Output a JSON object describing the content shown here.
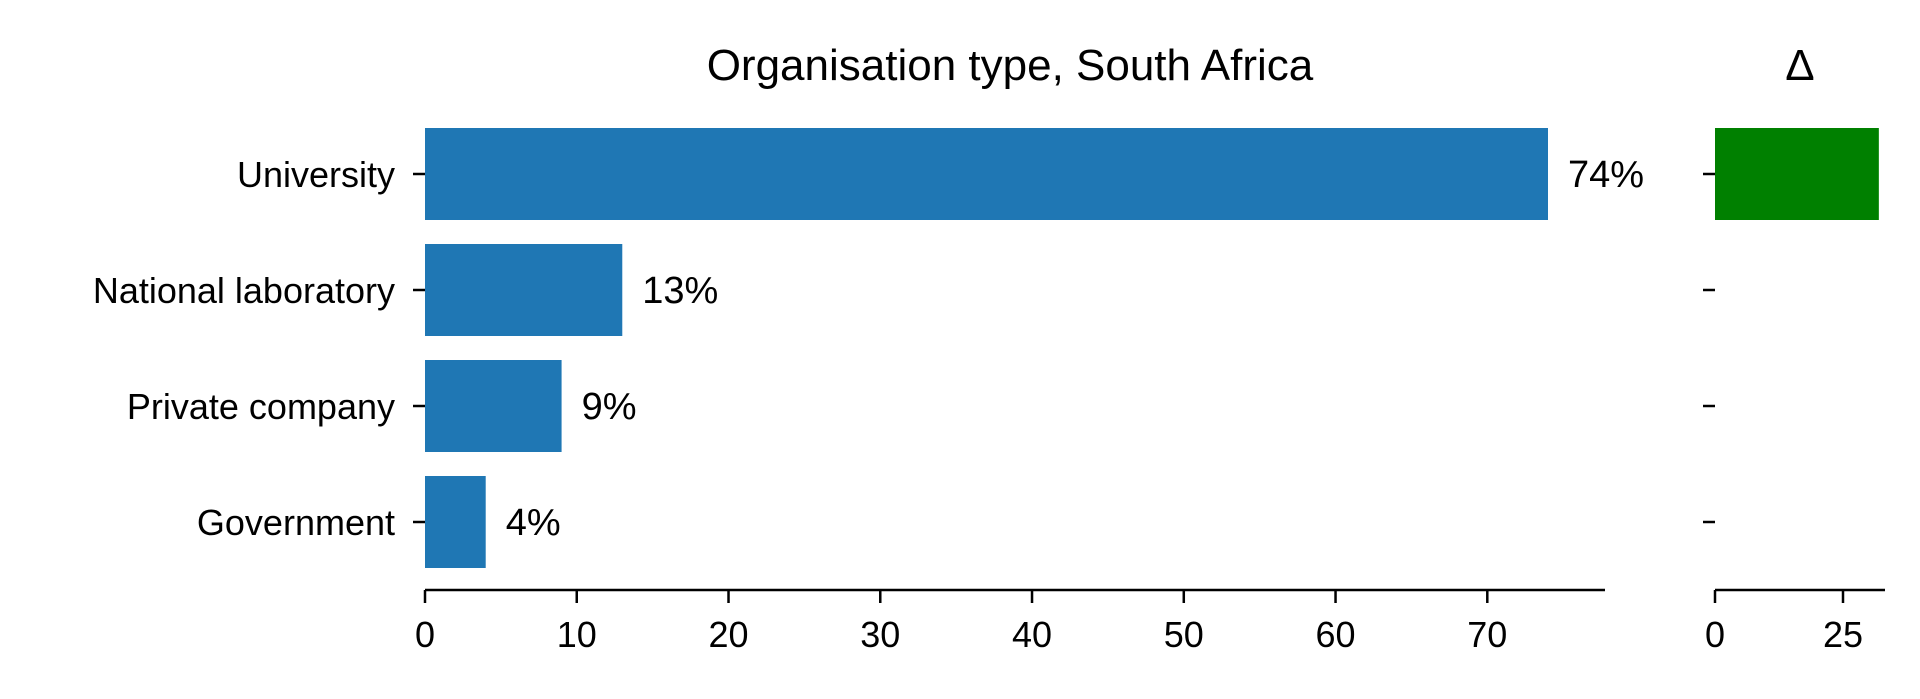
{
  "chart_data": [
    {
      "type": "bar",
      "orientation": "horizontal",
      "title": "Organisation type, South Africa",
      "categories": [
        "University",
        "National laboratory",
        "Private company",
        "Government"
      ],
      "values": [
        74,
        13,
        9,
        4
      ],
      "value_labels": [
        "74%",
        "13%",
        "9%",
        "4%"
      ],
      "xlim": [
        0,
        78
      ],
      "xticks": [
        0,
        10,
        20,
        30,
        40,
        50,
        60,
        70
      ],
      "xlabel": "",
      "ylabel": "",
      "grid": false,
      "bar_color": "#1f77b4"
    },
    {
      "type": "bar",
      "orientation": "horizontal",
      "title": "Δ",
      "categories": [
        "University",
        "National laboratory",
        "Private company",
        "Government"
      ],
      "values": [
        32,
        0,
        0,
        0
      ],
      "xlim": [
        0,
        34
      ],
      "xticks": [
        0,
        25
      ],
      "grid": false,
      "bar_color": "#008000"
    }
  ]
}
